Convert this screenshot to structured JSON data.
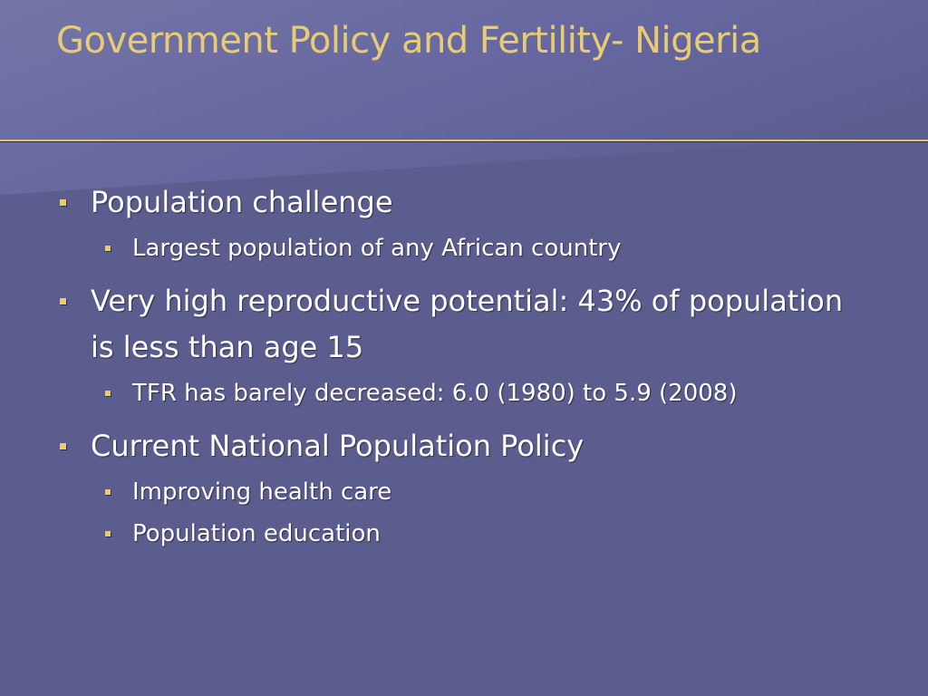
{
  "slide": {
    "title": "Government Policy and Fertility- Nigeria",
    "bullets": [
      {
        "level": 1,
        "text": "Population challenge"
      },
      {
        "level": 2,
        "text": "Largest population of any African country"
      },
      {
        "level": 1,
        "text": "Very high reproductive potential: 43% of population is less than age 15"
      },
      {
        "level": 2,
        "text": "TFR has barely decreased: 6.0 (1980) to 5.9 (2008)"
      },
      {
        "level": 1,
        "text": "Current National Population Policy"
      },
      {
        "level": 2,
        "text": "Improving health care"
      },
      {
        "level": 2,
        "text": "Population education"
      }
    ]
  },
  "colors": {
    "background": "#5c5d8f",
    "title": "#e8cc73",
    "body_text": "#ffffff",
    "bullet": "#e8cc73",
    "rule": "#d9c27a"
  }
}
